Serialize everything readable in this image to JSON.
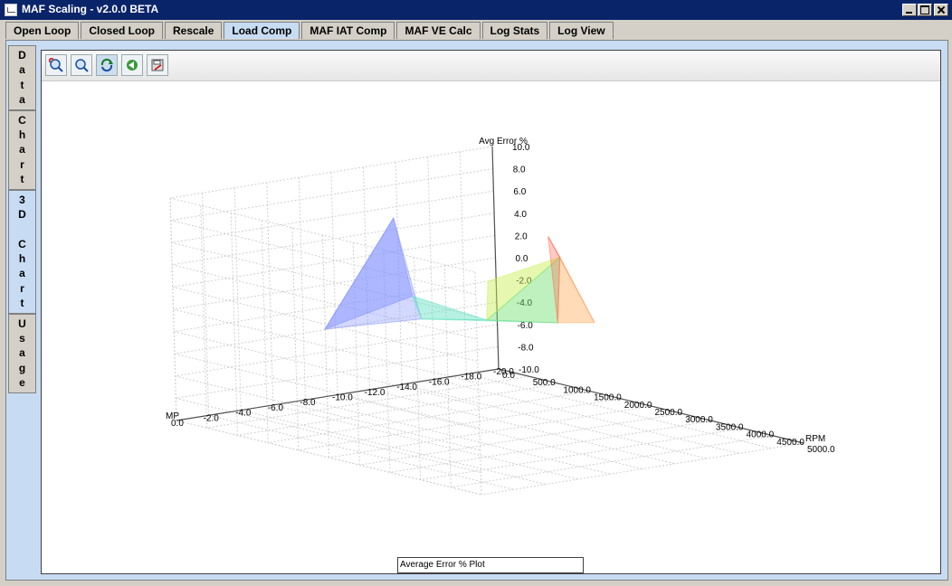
{
  "window": {
    "title": "MAF Scaling - v2.0.0 BETA"
  },
  "tabs": [
    {
      "label": "Open Loop"
    },
    {
      "label": "Closed Loop"
    },
    {
      "label": "Rescale"
    },
    {
      "label": "Load Comp"
    },
    {
      "label": "MAF IAT Comp"
    },
    {
      "label": "MAF VE Calc"
    },
    {
      "label": "Log Stats"
    },
    {
      "label": "Log View"
    }
  ],
  "active_tab": "Load Comp",
  "side_tabs": [
    {
      "label": "Data"
    },
    {
      "label": "Chart"
    },
    {
      "label": "3D Chart"
    },
    {
      "label": "Usage"
    }
  ],
  "active_side_tab": "3D Chart",
  "toolbar": [
    {
      "icon": "zoom-fit-icon"
    },
    {
      "icon": "zoom-icon"
    },
    {
      "icon": "rotate-icon"
    },
    {
      "icon": "reset-icon"
    },
    {
      "icon": "save-icon"
    }
  ],
  "chart_data": {
    "type": "surface3d",
    "legend": "Average Error % Plot",
    "z_axis": {
      "label": "Avg Error %",
      "ticks": [
        "10.0",
        "8.0",
        "6.0",
        "4.0",
        "2.0",
        "0.0",
        "-2.0",
        "-4.0",
        "-6.0",
        "-8.0",
        "-10.0"
      ],
      "range": [
        -10,
        10
      ]
    },
    "rpm_axis": {
      "label": "RPM",
      "ticks": [
        "0.0",
        "500.0",
        "1000.0",
        "1500.0",
        "2000.0",
        "2500.0",
        "3000.0",
        "3500.0",
        "4000.0",
        "4500.0",
        "5000.0"
      ],
      "range": [
        0,
        5000
      ]
    },
    "mp_axis": {
      "label": "MP",
      "ticks": [
        "0.0",
        "-2.0",
        "-4.0",
        "-6.0",
        "-8.0",
        "-10.0",
        "-12.0",
        "-14.0",
        "-16.0",
        "-18.0",
        "-20.0"
      ],
      "range": [
        -20,
        0
      ]
    },
    "surfaces": [
      {
        "name": "negative-error",
        "color": "#7f8fff"
      },
      {
        "name": "transition",
        "color": "#60e0c0"
      },
      {
        "name": "positive-error",
        "color": "#ff6a50"
      }
    ]
  }
}
